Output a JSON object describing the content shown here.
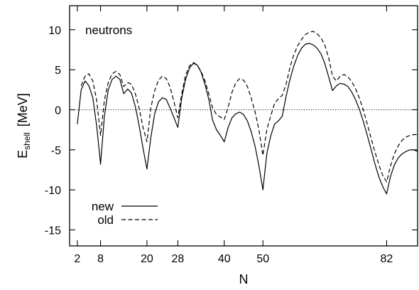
{
  "chart_data": {
    "type": "line",
    "annotation": "neutrons",
    "xlabel": "N",
    "ylabel_main": "E",
    "ylabel_sub": "shell",
    "ylabel_unit": "[MeV]",
    "xlim": [
      0,
      90
    ],
    "ylim": [
      -17,
      13
    ],
    "xticks": [
      2,
      8,
      20,
      28,
      40,
      50,
      82
    ],
    "xtick_labels": [
      "2",
      "8",
      "20",
      "28",
      "40",
      "50",
      "82"
    ],
    "yticks": [
      -15,
      -10,
      -5,
      0,
      5,
      10
    ],
    "ytick_labels": [
      "-15",
      "-10",
      "-5",
      "0",
      "5",
      "10"
    ],
    "zero_line": true,
    "legend_position": "bottom-left",
    "series": [
      {
        "name": "new",
        "style": "solid",
        "color": "#000000",
        "x": [
          2,
          3,
          4,
          5,
          6,
          7,
          8,
          9,
          10,
          11,
          12,
          13,
          14,
          15,
          16,
          17,
          18,
          19,
          20,
          21,
          22,
          23,
          24,
          25,
          26,
          27,
          28,
          29,
          30,
          31,
          32,
          33,
          34,
          35,
          36,
          37,
          38,
          39,
          40,
          41,
          42,
          43,
          44,
          45,
          46,
          47,
          48,
          49,
          50,
          51,
          52,
          53,
          54,
          55,
          56,
          57,
          58,
          59,
          60,
          61,
          62,
          63,
          64,
          65,
          66,
          67,
          68,
          69,
          70,
          71,
          72,
          73,
          74,
          75,
          76,
          77,
          78,
          79,
          80,
          81,
          82,
          83,
          84,
          85,
          86,
          87,
          88,
          89,
          90
        ],
        "y": [
          -1.8,
          2.5,
          3.6,
          3.0,
          1.5,
          -2.0,
          -6.8,
          -0.8,
          2.5,
          3.8,
          4.2,
          3.8,
          2.0,
          2.6,
          2.1,
          0.4,
          -2.0,
          -4.8,
          -7.4,
          -3.5,
          -0.5,
          1.0,
          1.5,
          1.3,
          0.2,
          -1.0,
          -2.2,
          1.5,
          3.8,
          5.2,
          5.8,
          5.6,
          4.7,
          3.2,
          1.3,
          -1.3,
          -2.5,
          -3.2,
          -4.0,
          -2.2,
          -1.0,
          -0.5,
          -0.3,
          -0.6,
          -1.4,
          -2.8,
          -4.6,
          -7.1,
          -10.0,
          -5.5,
          -3.3,
          -1.8,
          -1.4,
          -0.8,
          1.7,
          3.8,
          5.5,
          6.8,
          7.7,
          8.2,
          8.3,
          8.1,
          7.7,
          7.0,
          5.8,
          4.1,
          2.4,
          3.0,
          3.3,
          3.2,
          2.9,
          2.2,
          1.2,
          0.0,
          -1.5,
          -3.2,
          -5.0,
          -6.8,
          -8.4,
          -9.6,
          -10.5,
          -8.3,
          -6.9,
          -6.0,
          -5.5,
          -5.2,
          -5.0,
          -5.0,
          -5.2
        ]
      },
      {
        "name": "old",
        "style": "dashed",
        "color": "#000000",
        "x": [
          3,
          4,
          5,
          6,
          7,
          8,
          9,
          10,
          11,
          12,
          13,
          14,
          15,
          16,
          17,
          18,
          19,
          20,
          21,
          22,
          23,
          24,
          25,
          26,
          27,
          28,
          29,
          30,
          31,
          32,
          33,
          34,
          35,
          36,
          37,
          38,
          39,
          40,
          41,
          42,
          43,
          44,
          45,
          46,
          47,
          48,
          49,
          50,
          51,
          52,
          53,
          54,
          55,
          56,
          57,
          58,
          59,
          60,
          61,
          62,
          63,
          64,
          65,
          66,
          67,
          68,
          69,
          70,
          71,
          72,
          73,
          74,
          75,
          76,
          77,
          78,
          79,
          80,
          81,
          82,
          83,
          84,
          85,
          86,
          87,
          88,
          89,
          90
        ],
        "y": [
          3.0,
          4.2,
          4.5,
          3.6,
          1.2,
          -3.2,
          1.2,
          3.4,
          4.5,
          4.8,
          4.4,
          2.9,
          3.4,
          3.2,
          2.0,
          0.2,
          -2.2,
          -4.0,
          0.2,
          2.4,
          3.7,
          4.2,
          3.9,
          2.8,
          1.0,
          -1.0,
          2.0,
          4.3,
          5.5,
          5.9,
          5.6,
          4.8,
          3.6,
          2.0,
          0.2,
          -0.6,
          -0.9,
          -1.2,
          0.3,
          2.2,
          3.4,
          3.9,
          3.7,
          2.9,
          1.4,
          -0.3,
          -2.6,
          -5.7,
          -2.5,
          -0.8,
          0.8,
          1.4,
          1.8,
          3.2,
          5.3,
          6.9,
          8.0,
          8.8,
          9.4,
          9.7,
          9.8,
          9.5,
          9.0,
          8.1,
          6.5,
          4.2,
          3.6,
          4.2,
          4.4,
          4.1,
          3.5,
          2.6,
          1.4,
          -0.1,
          -1.8,
          -3.6,
          -5.3,
          -6.9,
          -8.2,
          -9.0,
          -7.0,
          -5.5,
          -4.5,
          -3.8,
          -3.4,
          -3.2,
          -3.1,
          -3.1
        ]
      }
    ]
  }
}
